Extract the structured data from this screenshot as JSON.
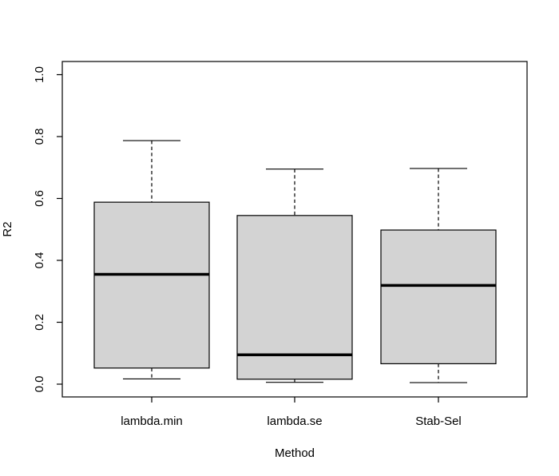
{
  "figure": {
    "background": "#ffffff",
    "line_color": "#000000"
  },
  "chart_data": {
    "type": "boxplot",
    "title": "",
    "xlabel": "Method",
    "ylabel": "R2",
    "categories": [
      "lambda.min",
      "lambda.se",
      "Stab-Sel"
    ],
    "ylim": [
      0,
      1
    ],
    "yticks": [
      0.0,
      0.2,
      0.4,
      0.6,
      0.8,
      1.0
    ],
    "ytick_labels": [
      "0.0",
      "0.2",
      "0.4",
      "0.6",
      "0.8",
      "1.0"
    ],
    "grid": false,
    "legend": false,
    "box_fill": "#d3d3d3",
    "line_color": "#000000",
    "whisker_style": "dashed",
    "series": [
      {
        "name": "lambda.min",
        "whisker_low": 0.017,
        "q1": 0.052,
        "median": 0.355,
        "q3": 0.588,
        "whisker_high": 0.787
      },
      {
        "name": "lambda.se",
        "whisker_low": 0.006,
        "q1": 0.016,
        "median": 0.095,
        "q3": 0.545,
        "whisker_high": 0.695
      },
      {
        "name": "Stab-Sel",
        "whisker_low": 0.005,
        "q1": 0.066,
        "median": 0.319,
        "q3": 0.498,
        "whisker_high": 0.697
      }
    ]
  }
}
